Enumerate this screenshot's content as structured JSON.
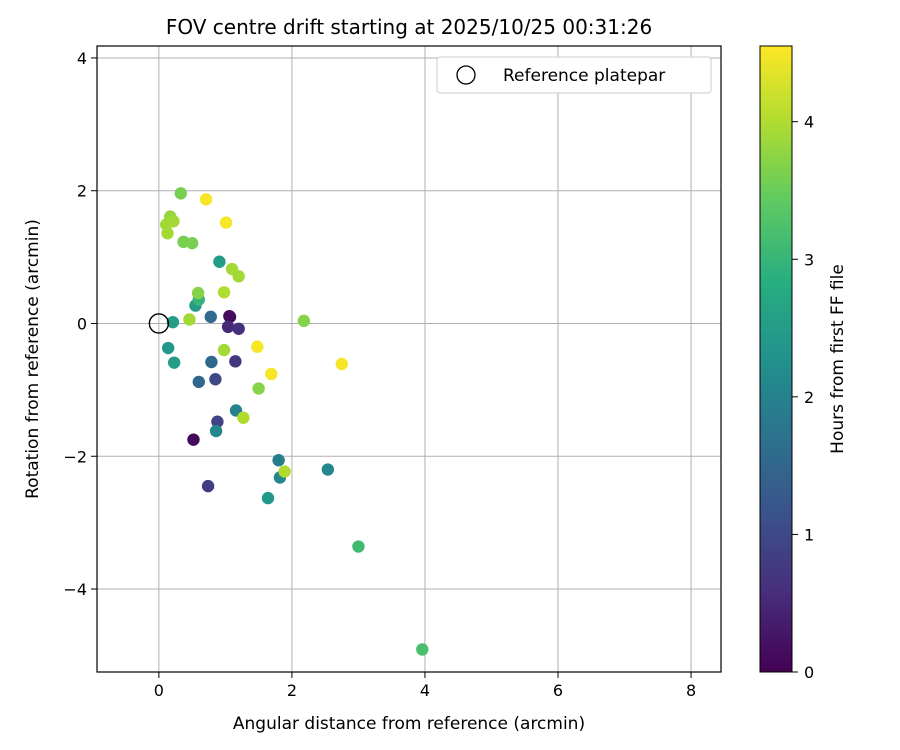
{
  "chart_data": {
    "type": "scatter",
    "title": "FOV centre drift starting at 2025/10/25 00:31:26",
    "xlabel": "Angular distance from reference (arcmin)",
    "ylabel": "Rotation from reference (arcmin)",
    "xlim": [
      -0.93,
      8.45
    ],
    "ylim": [
      -5.25,
      4.18
    ],
    "xticks": [
      0,
      2,
      4,
      6,
      8
    ],
    "yticks": [
      -4,
      -2,
      0,
      2,
      4
    ],
    "xtick_labels": [
      "0",
      "2",
      "4",
      "6",
      "8"
    ],
    "ytick_labels": [
      "−4",
      "−2",
      "0",
      "2",
      "4"
    ],
    "grid": true,
    "legend": {
      "position": "top-right",
      "label": "Reference platepar"
    },
    "reference_point": {
      "x": 0,
      "y": 0
    },
    "colorbar": {
      "label": "Hours from first FF file",
      "min": 0,
      "max": 4.55,
      "ticks": [
        0,
        1,
        2,
        3,
        4
      ],
      "tick_labels": [
        "0",
        "1",
        "2",
        "3",
        "4"
      ],
      "colormap": "viridis"
    },
    "points": [
      {
        "x": 1.06,
        "y": 0.11,
        "c": 0.05
      },
      {
        "x": 1.07,
        "y": 0.1,
        "c": 0.15
      },
      {
        "x": 0.52,
        "y": -1.75,
        "c": 0.1
      },
      {
        "x": 1.04,
        "y": -0.05,
        "c": 0.5
      },
      {
        "x": 1.2,
        "y": -0.08,
        "c": 0.6
      },
      {
        "x": 1.15,
        "y": -0.57,
        "c": 0.7
      },
      {
        "x": 0.74,
        "y": -2.45,
        "c": 0.8
      },
      {
        "x": 0.88,
        "y": -1.48,
        "c": 0.9
      },
      {
        "x": 0.85,
        "y": -0.84,
        "c": 1.0
      },
      {
        "x": 0.79,
        "y": -0.58,
        "c": 1.5
      },
      {
        "x": 0.6,
        "y": -0.88,
        "c": 1.5
      },
      {
        "x": 0.78,
        "y": 0.1,
        "c": 1.6
      },
      {
        "x": 1.16,
        "y": -1.31,
        "c": 2.0
      },
      {
        "x": 0.86,
        "y": -1.62,
        "c": 2.1
      },
      {
        "x": 1.8,
        "y": -2.06,
        "c": 1.9
      },
      {
        "x": 1.82,
        "y": -2.32,
        "c": 2.1
      },
      {
        "x": 2.54,
        "y": -2.2,
        "c": 2.1
      },
      {
        "x": 1.64,
        "y": -2.63,
        "c": 2.4
      },
      {
        "x": 0.14,
        "y": -0.37,
        "c": 2.4
      },
      {
        "x": 0.23,
        "y": -0.59,
        "c": 2.5
      },
      {
        "x": 0.21,
        "y": 0.02,
        "c": 2.5
      },
      {
        "x": 0.55,
        "y": 0.27,
        "c": 2.5
      },
      {
        "x": 0.91,
        "y": 0.93,
        "c": 2.5
      },
      {
        "x": 0.6,
        "y": 0.36,
        "c": 3.0
      },
      {
        "x": 3.0,
        "y": -3.36,
        "c": 3.1
      },
      {
        "x": 3.96,
        "y": -4.91,
        "c": 3.2
      },
      {
        "x": 0.33,
        "y": 1.96,
        "c": 3.6
      },
      {
        "x": 0.37,
        "y": 1.23,
        "c": 3.6
      },
      {
        "x": 0.5,
        "y": 1.21,
        "c": 3.6
      },
      {
        "x": 0.59,
        "y": 0.46,
        "c": 3.7
      },
      {
        "x": 1.5,
        "y": -0.98,
        "c": 3.7
      },
      {
        "x": 2.18,
        "y": 0.04,
        "c": 3.7
      },
      {
        "x": 0.17,
        "y": 1.61,
        "c": 3.8
      },
      {
        "x": 0.11,
        "y": 1.49,
        "c": 3.9
      },
      {
        "x": 0.22,
        "y": 1.54,
        "c": 3.9
      },
      {
        "x": 0.13,
        "y": 1.36,
        "c": 3.9
      },
      {
        "x": 0.46,
        "y": 0.06,
        "c": 3.9
      },
      {
        "x": 1.1,
        "y": 0.82,
        "c": 3.9
      },
      {
        "x": 1.2,
        "y": 0.71,
        "c": 3.9
      },
      {
        "x": 0.98,
        "y": 0.47,
        "c": 4.0
      },
      {
        "x": 0.98,
        "y": -0.4,
        "c": 3.9
      },
      {
        "x": 1.27,
        "y": -1.42,
        "c": 4.0
      },
      {
        "x": 1.89,
        "y": -2.23,
        "c": 4.0
      },
      {
        "x": 0.71,
        "y": 1.87,
        "c": 4.5
      },
      {
        "x": 1.01,
        "y": 1.52,
        "c": 4.5
      },
      {
        "x": 1.48,
        "y": -0.35,
        "c": 4.5
      },
      {
        "x": 1.69,
        "y": -0.76,
        "c": 4.5
      },
      {
        "x": 2.75,
        "y": -0.61,
        "c": 4.5
      }
    ]
  }
}
